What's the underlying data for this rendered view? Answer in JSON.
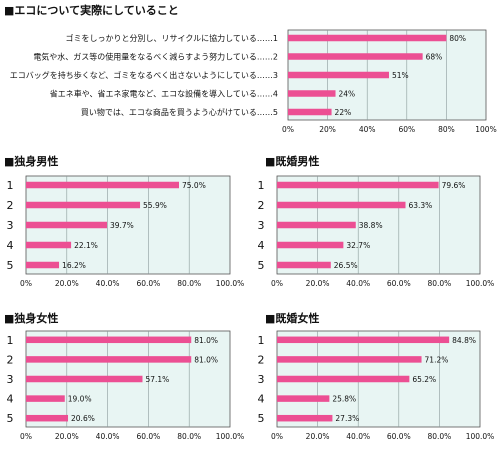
{
  "colors": {
    "bar": "#ec4f93",
    "plot_bg": "#e8f5f3",
    "grid": "#8a9a9a",
    "border": "#555555"
  },
  "chart_data": [
    {
      "type": "bar",
      "orientation": "horizontal",
      "title": "■エコについて実際にしていること",
      "categories": [
        "ゴミをしっかりと分別し、リサイクルに協力している……1",
        "電気や水、ガス等の使用量をなるべく減らすよう努力している……2",
        "エコバッグを持ち歩くなど、ゴミをなるべく出さないようにしている……3",
        "省エネ車や、省エネ家電など、エコな設備を導入している……4",
        "買い物では、エコな商品を買うよう心がけている……5"
      ],
      "values": [
        80,
        68,
        51,
        24,
        22
      ],
      "value_labels": [
        "80%",
        "68%",
        "51%",
        "24%",
        "22%"
      ],
      "xlim": [
        0,
        100
      ],
      "ticks": [
        "0%",
        "20%",
        "40%",
        "60%",
        "80%",
        "100%"
      ],
      "grid": true
    },
    {
      "type": "bar",
      "orientation": "horizontal",
      "title": "■独身男性",
      "categories": [
        "1",
        "2",
        "3",
        "4",
        "5"
      ],
      "values": [
        75.0,
        55.9,
        39.7,
        22.1,
        16.2
      ],
      "value_labels": [
        "75.0%",
        "55.9%",
        "39.7%",
        "22.1%",
        "16.2%"
      ],
      "xlim": [
        0,
        100
      ],
      "ticks": [
        "0%",
        "20.0%",
        "40.0%",
        "60.0%",
        "80.0%",
        "100.0%"
      ],
      "grid": true
    },
    {
      "type": "bar",
      "orientation": "horizontal",
      "title": "■既婚男性",
      "categories": [
        "1",
        "2",
        "3",
        "4",
        "5"
      ],
      "values": [
        79.6,
        63.3,
        38.8,
        32.7,
        26.5
      ],
      "value_labels": [
        "79.6%",
        "63.3%",
        "38.8%",
        "32.7%",
        "26.5%"
      ],
      "xlim": [
        0,
        100
      ],
      "ticks": [
        "0%",
        "20.0%",
        "40.0%",
        "60.0%",
        "80.0%",
        "100.0%"
      ],
      "grid": true
    },
    {
      "type": "bar",
      "orientation": "horizontal",
      "title": "■独身女性",
      "categories": [
        "1",
        "2",
        "3",
        "4",
        "5"
      ],
      "values": [
        81.0,
        81.0,
        57.1,
        19.0,
        20.6
      ],
      "value_labels": [
        "81.0%",
        "81.0%",
        "57.1%",
        "19.0%",
        "20.6%"
      ],
      "xlim": [
        0,
        100
      ],
      "ticks": [
        "0%",
        "20.0%",
        "40.0%",
        "60.0%",
        "80.0%",
        "100.0%"
      ],
      "grid": true
    },
    {
      "type": "bar",
      "orientation": "horizontal",
      "title": "■既婚女性",
      "categories": [
        "1",
        "2",
        "3",
        "4",
        "5"
      ],
      "values": [
        84.8,
        71.2,
        65.2,
        25.8,
        27.3
      ],
      "value_labels": [
        "84.8%",
        "71.2%",
        "65.2%",
        "25.8%",
        "27.3%"
      ],
      "xlim": [
        0,
        100
      ],
      "ticks": [
        "0%",
        "20.0%",
        "40.0%",
        "60.0%",
        "80.0%",
        "100.0%"
      ],
      "grid": true
    }
  ]
}
